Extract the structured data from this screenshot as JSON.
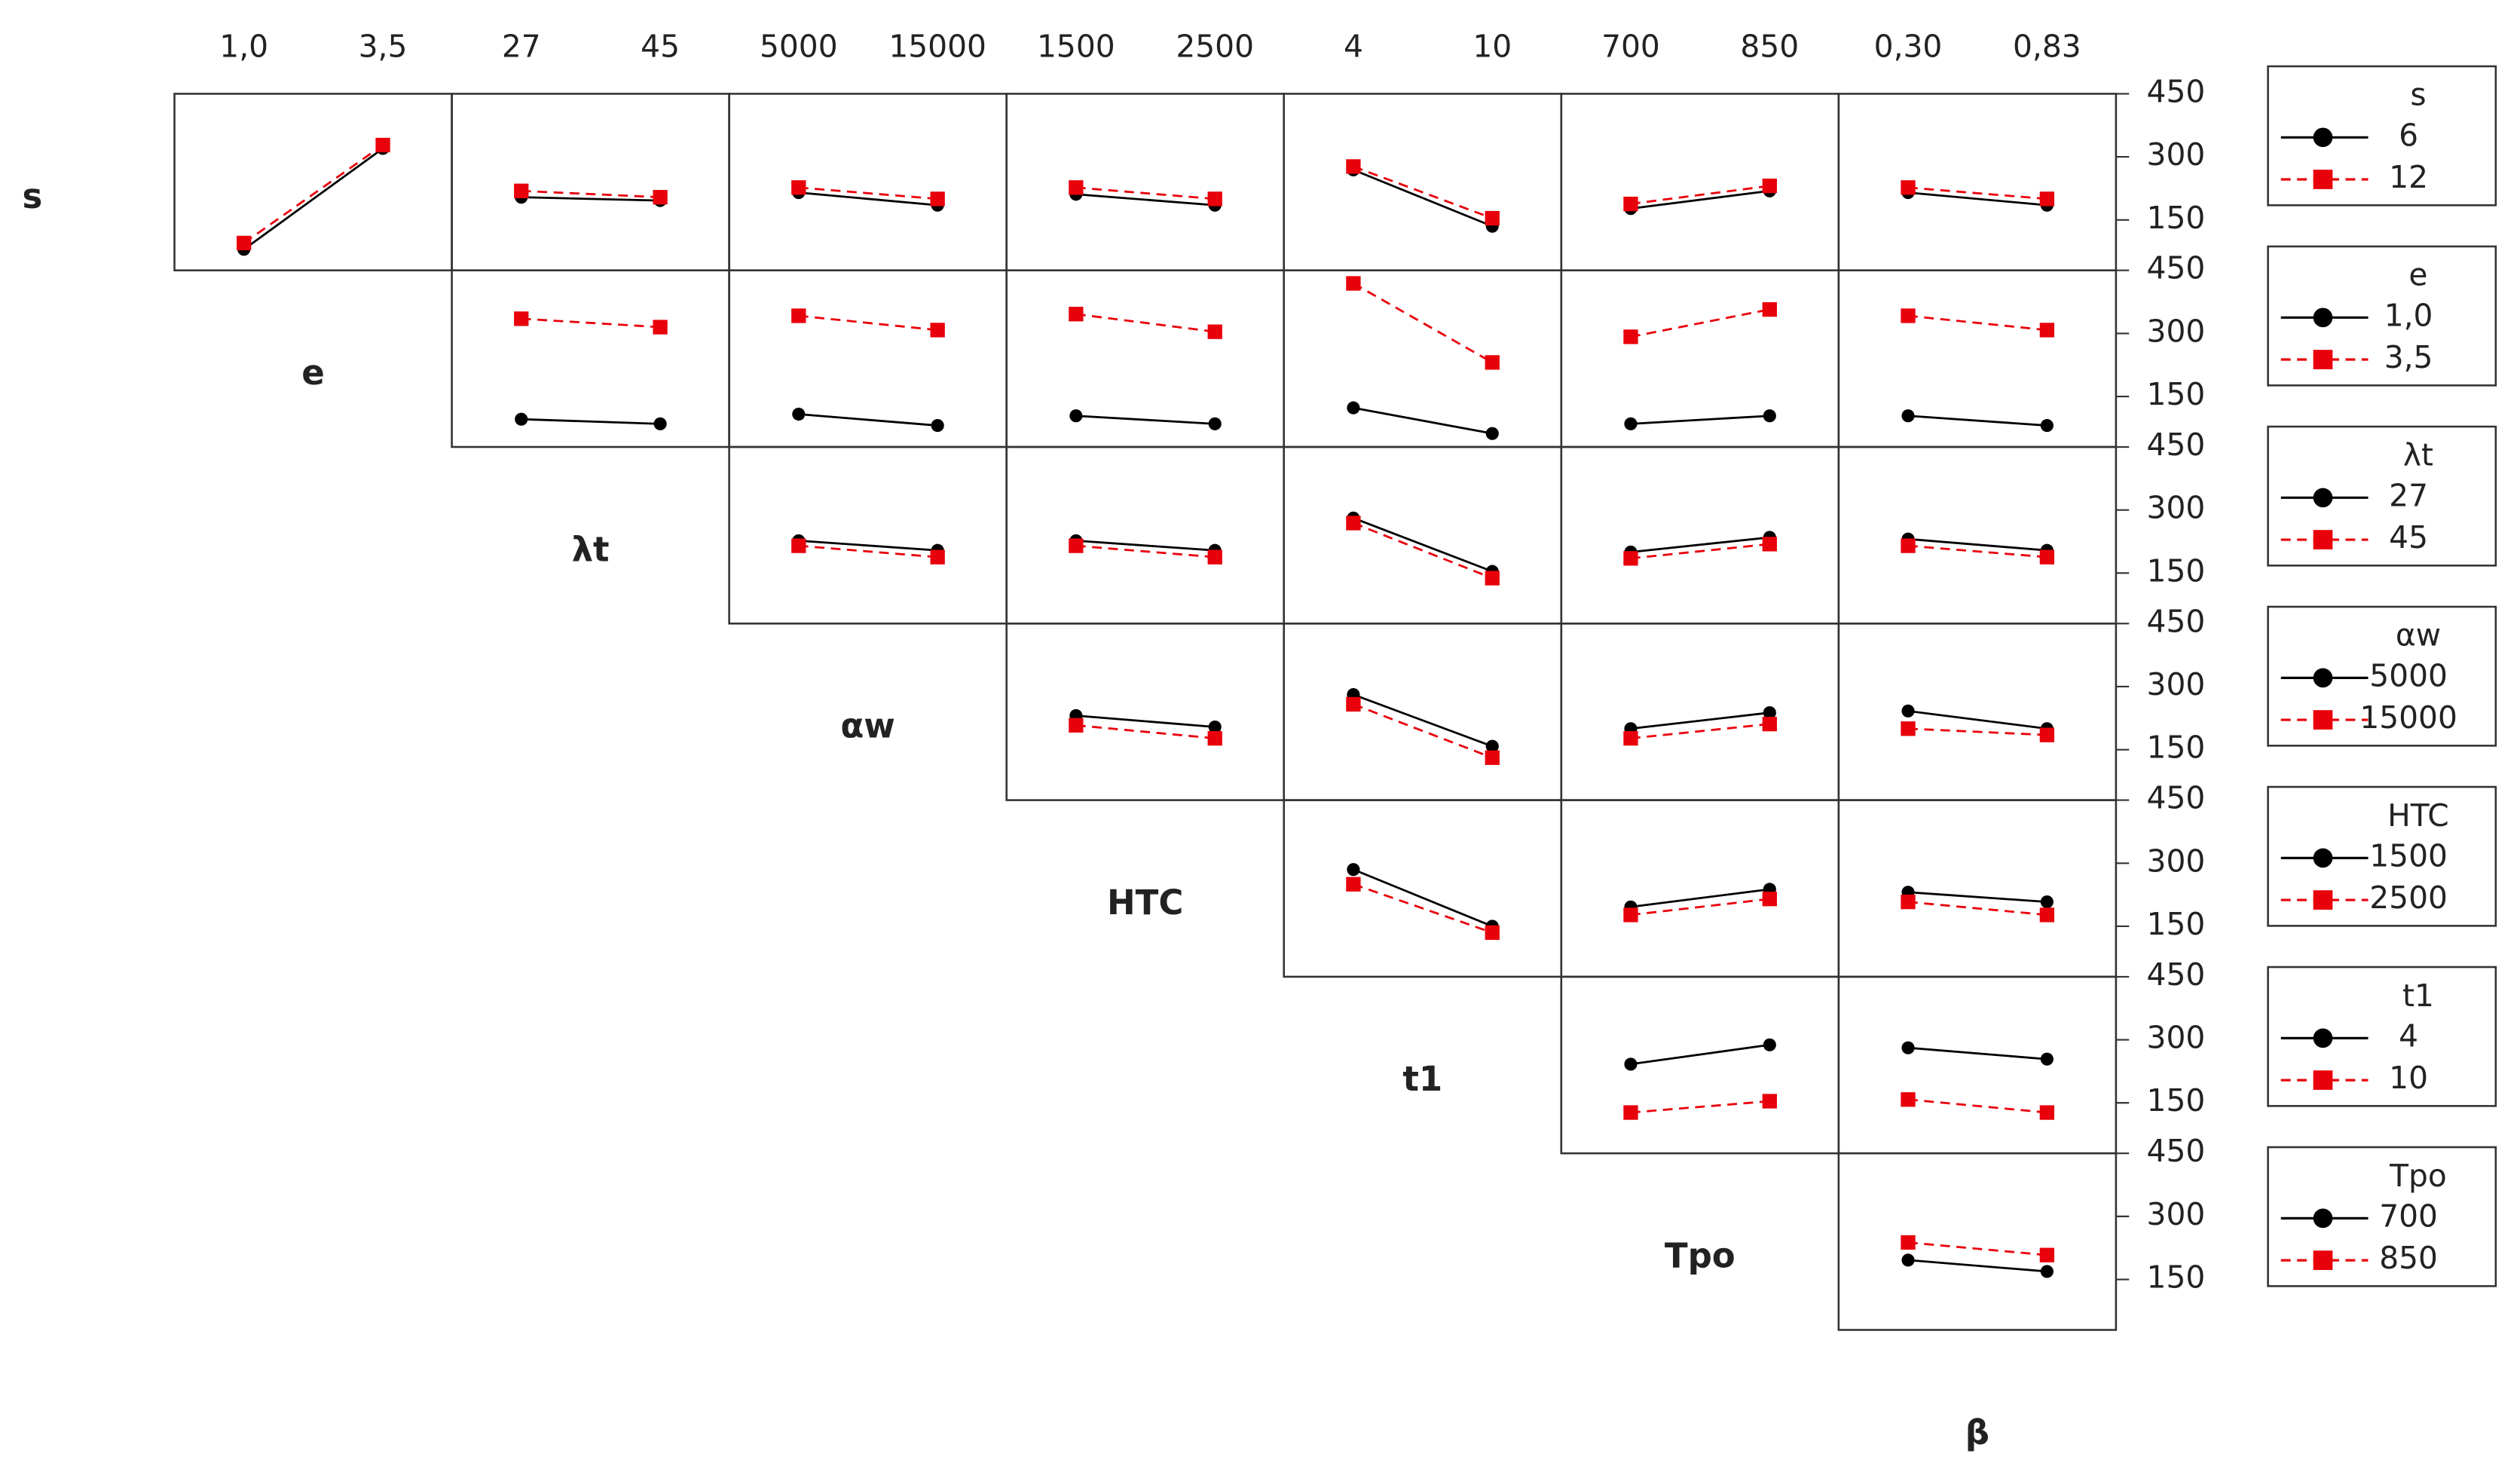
{
  "chart_data": {
    "type": "interaction-matrix",
    "factors": [
      {
        "name": "s",
        "levels": [
          "6",
          "12"
        ]
      },
      {
        "name": "e",
        "levels": [
          "1,0",
          "3,5"
        ]
      },
      {
        "name": "λt",
        "levels": [
          "27",
          "45"
        ]
      },
      {
        "name": "αw",
        "levels": [
          "5000",
          "15000"
        ]
      },
      {
        "name": "HTC",
        "levels": [
          "1500",
          "2500"
        ]
      },
      {
        "name": "t1",
        "levels": [
          "4",
          "10"
        ]
      },
      {
        "name": "Tpo",
        "levels": [
          "700",
          "850"
        ]
      },
      {
        "name": "β",
        "levels": [
          "0,30",
          "0,83"
        ]
      }
    ],
    "colors": [
      "#000000",
      "#e8000b"
    ],
    "ylim": [
      30,
      450
    ],
    "yticks": [
      150,
      300,
      450
    ],
    "panels": [
      [
        [
          [
            80,
            320
          ],
          [
            95,
            328
          ]
        ],
        [
          [
            204,
            196
          ],
          [
            219,
            204
          ]
        ],
        [
          [
            215,
            185
          ],
          [
            227,
            200
          ]
        ],
        [
          [
            211,
            185
          ],
          [
            227,
            200
          ]
        ],
        [
          [
            269,
            135
          ],
          [
            277,
            154
          ]
        ],
        [
          [
            177,
            219
          ],
          [
            188,
            231
          ]
        ],
        [
          [
            215,
            185
          ],
          [
            227,
            200
          ]
        ]
      ],
      [
        [
          [
            96,
            85
          ],
          [
            335,
            315
          ]
        ],
        [
          [
            108,
            81
          ],
          [
            342,
            308
          ]
        ],
        [
          [
            104,
            85
          ],
          [
            346,
            304
          ]
        ],
        [
          [
            123,
            62
          ],
          [
            419,
            231
          ]
        ],
        [
          [
            85,
            104
          ],
          [
            292,
            357
          ]
        ],
        [
          [
            104,
            81
          ],
          [
            342,
            308
          ]
        ]
      ],
      [
        [
          [
            227,
            204
          ],
          [
            215,
            188
          ]
        ],
        [
          [
            227,
            204
          ],
          [
            215,
            188
          ]
        ],
        [
          [
            281,
            154
          ],
          [
            269,
            138
          ]
        ],
        [
          [
            200,
            235
          ],
          [
            185,
            219
          ]
        ],
        [
          [
            231,
            204
          ],
          [
            215,
            188
          ]
        ]
      ],
      [
        [
          [
            231,
            204
          ],
          [
            208,
            177
          ]
        ],
        [
          [
            281,
            158
          ],
          [
            258,
            131
          ]
        ],
        [
          [
            200,
            238
          ],
          [
            177,
            211
          ]
        ],
        [
          [
            242,
            200
          ],
          [
            200,
            185
          ]
        ]
      ],
      [
        [
          [
            285,
            150
          ],
          [
            250,
            135
          ]
        ],
        [
          [
            196,
            238
          ],
          [
            177,
            215
          ]
        ],
        [
          [
            231,
            208
          ],
          [
            208,
            177
          ]
        ]
      ],
      [
        [
          [
            242,
            288
          ],
          [
            127,
            154
          ]
        ],
        [
          [
            281,
            254
          ],
          [
            158,
            127
          ]
        ]
      ],
      [
        [
          [
            196,
            169
          ],
          [
            238,
            208
          ]
        ]
      ]
    ]
  }
}
